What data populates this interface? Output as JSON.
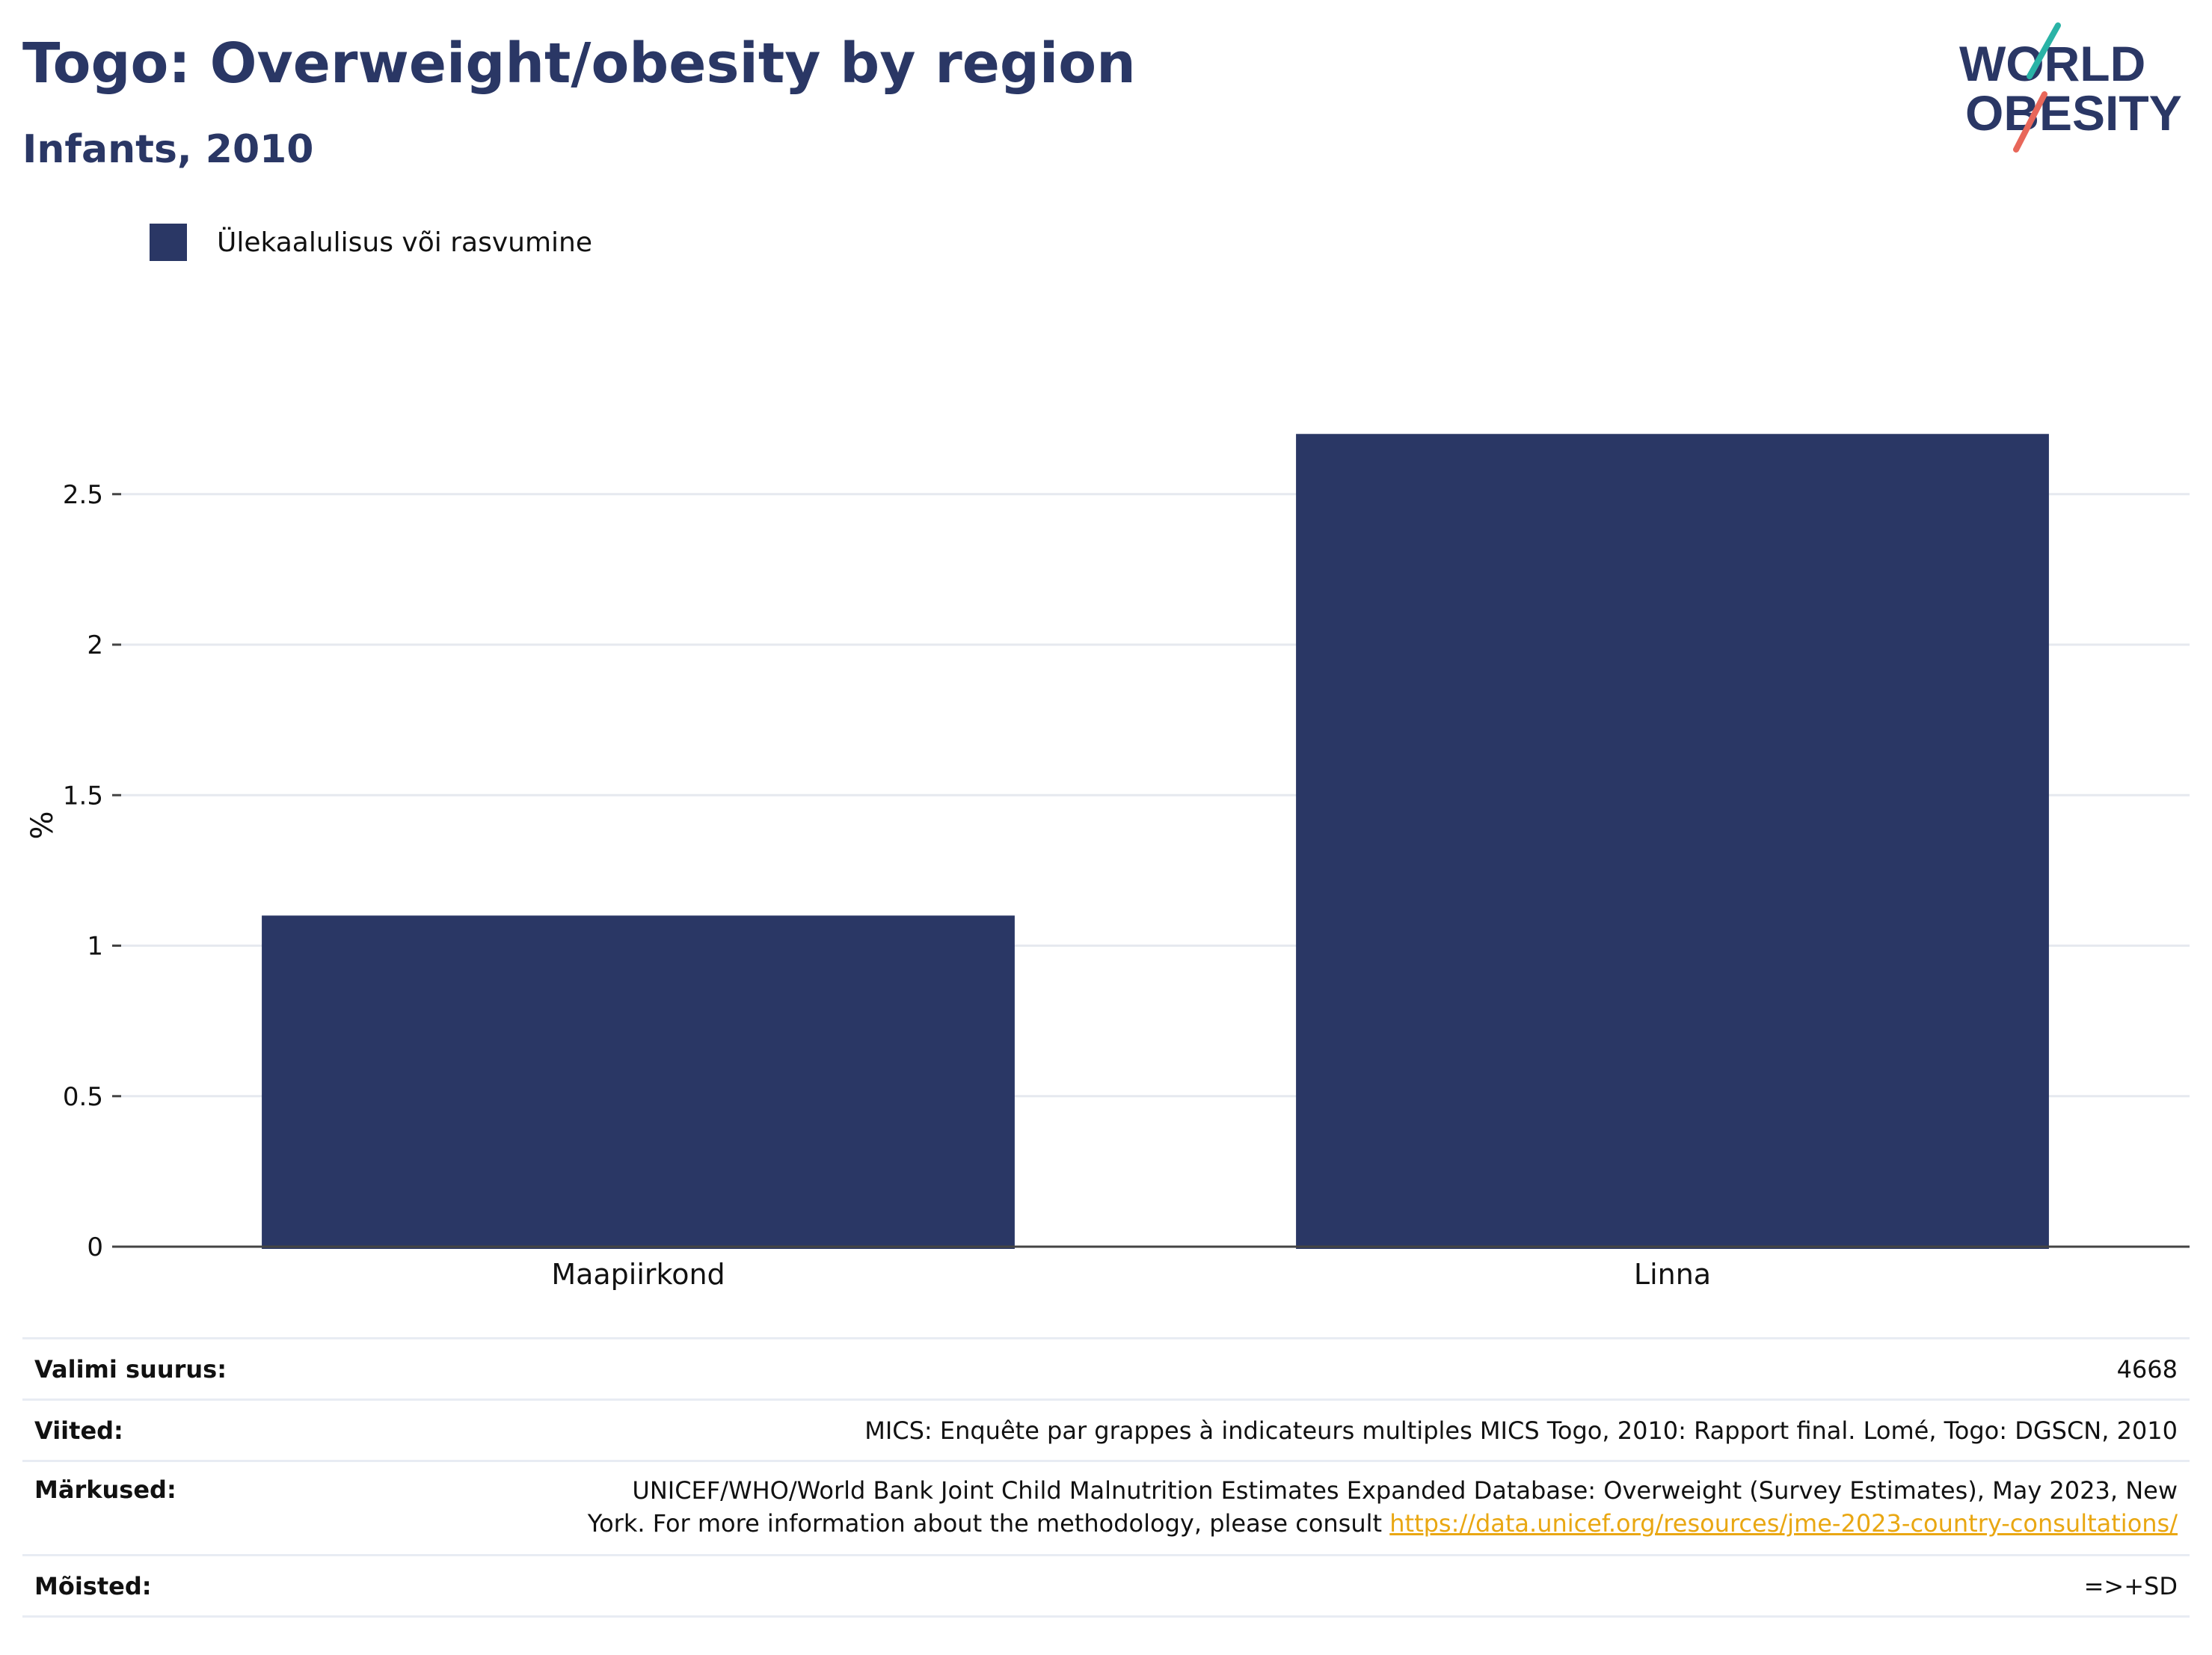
{
  "header": {
    "title": "Togo: Overweight/obesity by region",
    "subtitle": "Infants, 2010"
  },
  "logo": {
    "line1": "WORLD",
    "line2": "OBESITY",
    "colors": {
      "navy": "#2a3765",
      "teal": "#2ab3a6",
      "coral": "#e8675a"
    }
  },
  "legend": {
    "label": "Ülekaalulisus või rasvumine"
  },
  "colors": {
    "bar": "#2a3765",
    "grid": "#e6e9ef",
    "axis": "#444444",
    "link": "#e9a712"
  },
  "chart_data": {
    "type": "bar",
    "title": "Togo: Overweight/obesity by region",
    "subtitle": "Infants, 2010",
    "categories": [
      "Maapiirkond",
      "Linna"
    ],
    "series": [
      {
        "name": "Ülekaalulisus või rasvumine",
        "values": [
          1.1,
          2.7
        ]
      }
    ],
    "ylabel": "%",
    "ylim": [
      0,
      2.8
    ],
    "yticks": [
      0,
      0.5,
      1,
      1.5,
      2,
      2.5
    ],
    "ytick_labels": [
      "0",
      "0.5",
      "1",
      "1.5",
      "2",
      "2.5"
    ],
    "grid": true,
    "legend_position": "top-left"
  },
  "info": {
    "sample_size_label": "Valimi suurus:",
    "sample_size_value": "4668",
    "references_label": "Viited:",
    "references_value": "MICS: Enquête par grappes à indicateurs multiples MICS Togo, 2010: Rapport final. Lomé, Togo: DGSCN, 2010",
    "notes_label": "Märkused:",
    "notes_value_line1": "UNICEF/WHO/World Bank Joint Child Malnutrition Estimates Expanded Database: Overweight (Survey Estimates), May 2023, New",
    "notes_value_line2": "York. For more information about the methodology, please consult",
    "notes_link": "https://data.unicef.org/resources/jme-2023-country-consultations/",
    "definitions_label": "Mõisted:",
    "definitions_value": "=>+SD"
  }
}
